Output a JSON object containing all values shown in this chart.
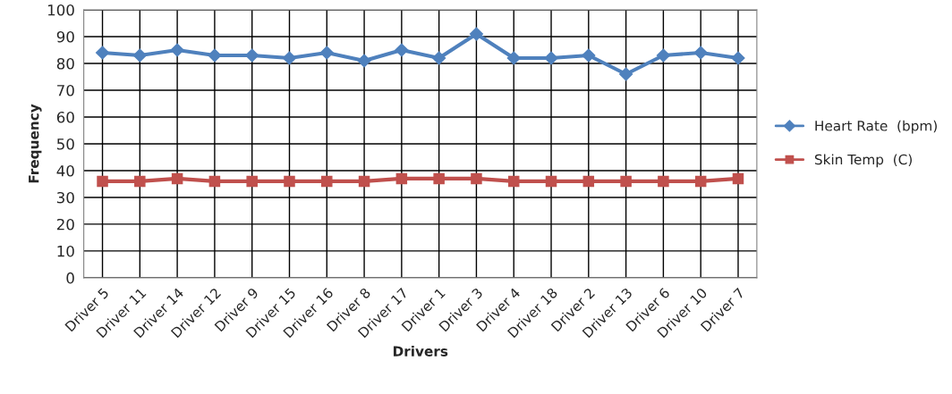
{
  "chart_data": {
    "type": "line",
    "xlabel": "Drivers",
    "ylabel": "Frequency",
    "categories": [
      "Driver 5",
      "Driver 11",
      "Driver 14",
      "Driver 12",
      "Driver 9",
      "Driver 15",
      "Driver 16",
      "Driver 8",
      "Driver 17",
      "Driver 1",
      "Driver 3",
      "Driver 4",
      "Driver 18",
      "Driver 2",
      "Driver 13",
      "Driver 6",
      "Driver 10",
      "Driver 7"
    ],
    "series": [
      {
        "name": "Heart Rate  (bpm)",
        "color": "#4f81bd",
        "marker": "diamond",
        "values": [
          84,
          83,
          85,
          83,
          83,
          82,
          84,
          81,
          85,
          82,
          91,
          82,
          82,
          83,
          76,
          83,
          84,
          82
        ]
      },
      {
        "name": "Skin Temp  (C)",
        "color": "#c0504d",
        "marker": "square",
        "values": [
          36,
          36,
          37,
          36,
          36,
          36,
          36,
          36,
          37,
          37,
          37,
          36,
          36,
          36,
          36,
          36,
          36,
          37
        ]
      }
    ],
    "ylim": [
      0,
      100
    ],
    "yticks": [
      0,
      10,
      20,
      30,
      40,
      50,
      60,
      70,
      80,
      90,
      100
    ],
    "grid": true,
    "legend": "right",
    "line_style": "solid"
  }
}
